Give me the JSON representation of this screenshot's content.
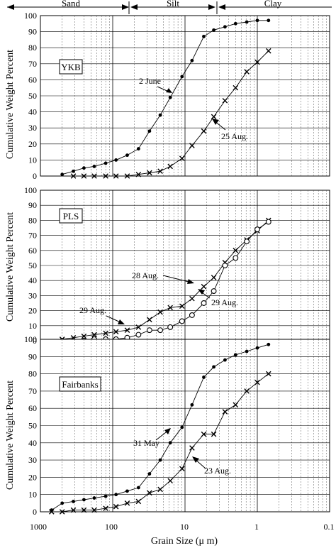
{
  "header": {
    "zones": [
      {
        "label": "Sand"
      },
      {
        "label": "Silt"
      },
      {
        "label": "Clay"
      }
    ]
  },
  "x_axis": {
    "label": "Grain Size (μ m)",
    "ticks": [
      "1000",
      "100",
      "10",
      "1",
      "0.1"
    ]
  },
  "chart_data": [
    {
      "type": "line",
      "panel_label": "YKB",
      "ylabel": "Cumulative Weight Percent",
      "xlabel": "Grain Size (μ m)",
      "xscale": "log",
      "x_reversed": true,
      "xlim": [
        1000,
        0.1
      ],
      "ylim": [
        0,
        100
      ],
      "yticks": [
        0,
        10,
        20,
        30,
        40,
        50,
        60,
        70,
        80,
        90,
        100
      ],
      "grid": true,
      "series": [
        {
          "marker": "dot",
          "x": [
            500,
            350,
            250,
            180,
            125,
            90,
            63,
            44,
            31,
            22,
            16,
            11,
            8,
            5.5,
            4,
            2.8,
            2,
            1.4,
            1,
            0.7
          ],
          "y": [
            1,
            3,
            5,
            6,
            8,
            10,
            13,
            17,
            28,
            38,
            49,
            62,
            72,
            87,
            91,
            93,
            95,
            96,
            97,
            97
          ]
        },
        {
          "marker": "x",
          "x": [
            350,
            250,
            180,
            125,
            90,
            63,
            44,
            31,
            22,
            16,
            11,
            8,
            5.5,
            4,
            2.8,
            2,
            1.4,
            1,
            0.7
          ],
          "y": [
            0,
            0,
            0,
            0,
            0,
            0,
            1,
            2,
            3,
            6,
            11,
            19,
            28,
            37,
            47,
            55,
            65,
            71,
            78
          ]
        }
      ],
      "annotations": [
        {
          "text": "2 June"
        },
        {
          "text": "25 Aug."
        }
      ]
    },
    {
      "type": "line",
      "panel_label": "PLS",
      "ylabel": "Cumulative Weight Percent",
      "xlabel": "Grain Size (μ m)",
      "xscale": "log",
      "x_reversed": true,
      "xlim": [
        1000,
        0.1
      ],
      "ylim": [
        0,
        100
      ],
      "yticks": [
        0,
        10,
        20,
        30,
        40,
        50,
        60,
        70,
        80,
        90,
        100
      ],
      "grid": true,
      "series": [
        {
          "marker": "x",
          "x": [
            500,
            350,
            250,
            180,
            125,
            90,
            63,
            44,
            31,
            22,
            16,
            11,
            8,
            5.5,
            4,
            2.8,
            2,
            1.4,
            1,
            0.7
          ],
          "y": [
            1,
            2,
            3,
            4,
            5,
            6,
            7,
            9,
            14,
            19,
            22,
            23,
            28,
            36,
            42,
            52,
            60,
            67,
            73,
            80
          ]
        },
        {
          "marker": "circle",
          "x": [
            500,
            350,
            250,
            180,
            125,
            90,
            63,
            44,
            31,
            22,
            16,
            11,
            8,
            5.5,
            4,
            2.8,
            2,
            1.4,
            1,
            0.7
          ],
          "y": [
            0,
            0,
            0,
            1,
            1,
            1,
            2,
            4,
            7,
            7,
            9,
            13,
            17,
            25,
            33,
            50,
            55,
            66,
            74,
            79
          ]
        }
      ],
      "annotations": [
        {
          "text": "28 Aug."
        },
        {
          "text": "29 Aug."
        },
        {
          "text": "29 Aug."
        }
      ]
    },
    {
      "type": "line",
      "panel_label": "Fairbanks",
      "ylabel": "Cumulative Weight Percent",
      "xlabel": "Grain Size (μ m)",
      "xscale": "log",
      "x_reversed": true,
      "xlim": [
        1000,
        0.1
      ],
      "ylim": [
        0,
        100
      ],
      "yticks": [
        0,
        10,
        20,
        30,
        40,
        50,
        60,
        70,
        80,
        90,
        100
      ],
      "grid": true,
      "series": [
        {
          "marker": "dot",
          "x": [
            700,
            500,
            350,
            250,
            180,
            125,
            90,
            63,
            44,
            31,
            22,
            16,
            11,
            8,
            5.5,
            4,
            2.8,
            2,
            1.4,
            1,
            0.7
          ],
          "y": [
            1,
            5,
            6,
            7,
            8,
            9,
            10,
            12,
            14,
            22,
            30,
            40,
            49,
            62,
            78,
            84,
            88,
            91,
            93,
            95,
            97
          ]
        },
        {
          "marker": "x",
          "x": [
            700,
            500,
            350,
            250,
            180,
            125,
            90,
            63,
            44,
            31,
            22,
            16,
            11,
            8,
            5.5,
            4,
            2.8,
            2,
            1.4,
            1,
            0.7
          ],
          "y": [
            0,
            0,
            1,
            1,
            1,
            2,
            3,
            5,
            6,
            11,
            13,
            18,
            25,
            37,
            45,
            45,
            58,
            62,
            70,
            75,
            80
          ]
        }
      ],
      "annotations": [
        {
          "text": "31 May"
        },
        {
          "text": "23 Aug."
        }
      ]
    }
  ]
}
